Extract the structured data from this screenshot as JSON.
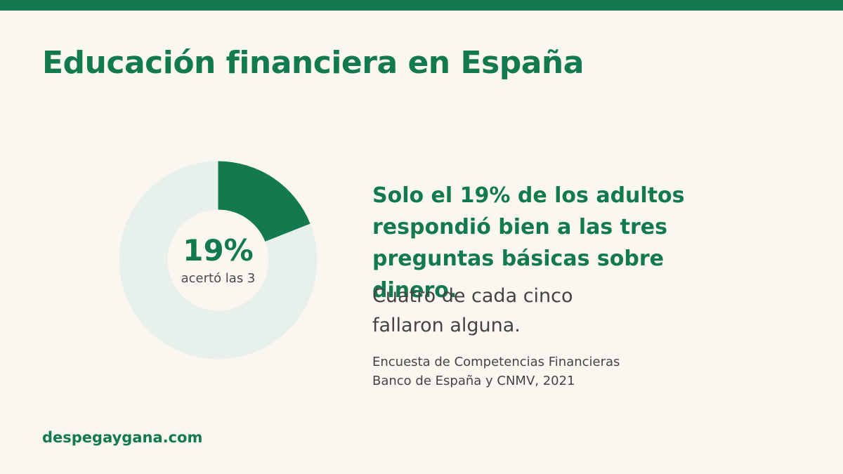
{
  "title": "Educación financiera en España",
  "chart_data": {
    "type": "pie",
    "variant": "donut",
    "slices": [
      {
        "label": "acertó las 3",
        "value": 19,
        "color": "#137a4f"
      },
      {
        "label": "",
        "value": 81,
        "color": "#e8f0eb"
      }
    ],
    "center_value": "19%",
    "center_label": "acertó las 3"
  },
  "headline": "Solo el 19% de los adultos respondió bien a las tres preguntas básicas sobre dinero.",
  "subtext": "Cuatro de cada cinco fallaron alguna.",
  "source": {
    "line1": "Encuesta de Competencias Financieras",
    "line2": "Banco de España y CNMV, 2021"
  },
  "footer": "despegaygana.com",
  "colors": {
    "accent": "#137a4f",
    "track": "#e8f0eb",
    "background": "#faf6f0"
  }
}
